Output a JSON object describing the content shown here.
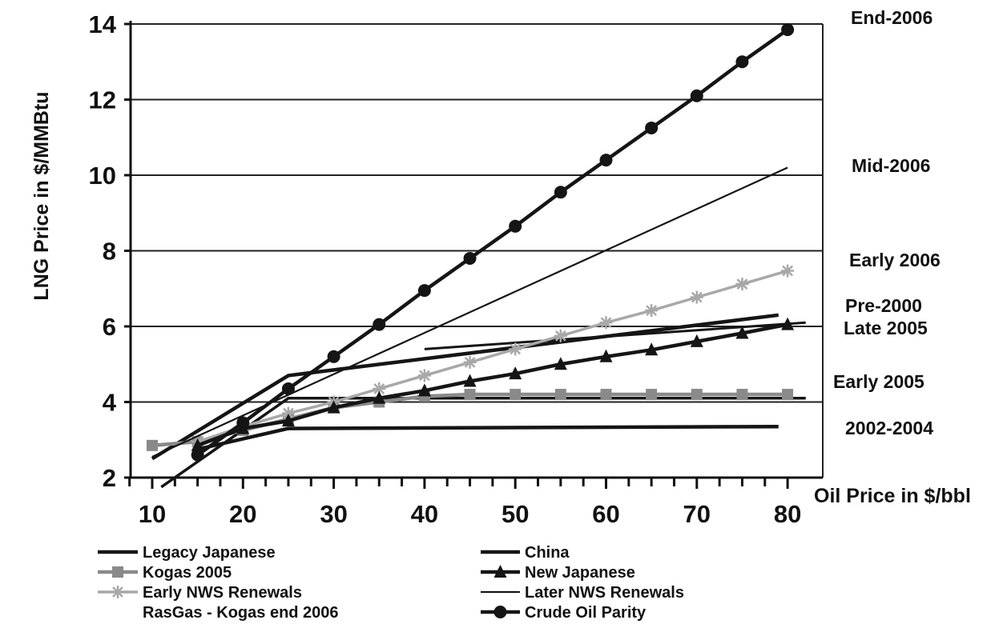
{
  "chart_data": {
    "type": "line",
    "xlabel": "Oil Price in $/bbl",
    "ylabel": "LNG Price in $/MMBtu",
    "xlim": [
      7.5,
      80
    ],
    "ylim": [
      2,
      14
    ],
    "x_ticks": [
      10,
      20,
      30,
      40,
      50,
      60,
      70,
      80
    ],
    "y_ticks": [
      2,
      4,
      6,
      8,
      10,
      12,
      14
    ],
    "grid": "horizontal",
    "legend_position": "bottom",
    "colors": {
      "black": "#151515",
      "gray": "#8a8a8a",
      "light_gray": "#a8a8a8"
    },
    "series": [
      {
        "name": "Legacy Japanese",
        "color": "#151515",
        "width": 4.5,
        "marker": "none",
        "points": [
          [
            10,
            2.5
          ],
          [
            25,
            4.7
          ],
          [
            79,
            6.3
          ]
        ]
      },
      {
        "name": "Kogas 2005",
        "color": "#8a8a8a",
        "width": 4.5,
        "marker": "square",
        "points": [
          [
            10,
            2.85
          ],
          [
            15,
            2.95
          ],
          [
            20,
            3.25
          ],
          [
            25,
            3.55
          ],
          [
            30,
            3.85
          ],
          [
            35,
            4.0
          ],
          [
            40,
            4.15
          ],
          [
            45,
            4.2
          ],
          [
            50,
            4.2
          ],
          [
            55,
            4.2
          ],
          [
            60,
            4.2
          ],
          [
            65,
            4.2
          ],
          [
            70,
            4.2
          ],
          [
            75,
            4.2
          ],
          [
            80,
            4.2
          ]
        ]
      },
      {
        "name": "Early NWS Renewals",
        "color": "#a8a8a8",
        "width": 3.5,
        "marker": "star",
        "points": [
          [
            15,
            2.95
          ],
          [
            20,
            3.35
          ],
          [
            25,
            3.7
          ],
          [
            30,
            4.0
          ],
          [
            35,
            4.35
          ],
          [
            40,
            4.7
          ],
          [
            45,
            5.05
          ],
          [
            50,
            5.4
          ],
          [
            55,
            5.75
          ],
          [
            60,
            6.1
          ],
          [
            65,
            6.42
          ],
          [
            70,
            6.77
          ],
          [
            75,
            7.12
          ],
          [
            80,
            7.47
          ]
        ]
      },
      {
        "name": "RasGas - Kogas end 2006",
        "color": "#151515",
        "width": 4.5,
        "marker": "none",
        "points": []
      },
      {
        "name": "China",
        "color": "#151515",
        "width": 4.5,
        "marker": "none",
        "points": [
          [
            15,
            2.75
          ],
          [
            25,
            3.3
          ],
          [
            79,
            3.35
          ]
        ]
      },
      {
        "name": "New Japanese",
        "color": "#151515",
        "width": 4.5,
        "marker": "triangle",
        "points": [
          [
            15,
            2.85
          ],
          [
            20,
            3.3
          ],
          [
            25,
            3.5
          ],
          [
            30,
            3.85
          ],
          [
            35,
            4.1
          ],
          [
            40,
            4.3
          ],
          [
            45,
            4.55
          ],
          [
            50,
            4.75
          ],
          [
            55,
            5.0
          ],
          [
            60,
            5.2
          ],
          [
            65,
            5.38
          ],
          [
            70,
            5.6
          ],
          [
            75,
            5.82
          ],
          [
            80,
            6.05
          ]
        ]
      },
      {
        "name": "Later NWS Renewals",
        "color": "#151515",
        "width": 2.2,
        "marker": "none",
        "points": [
          [
            10,
            2.55
          ],
          [
            80,
            10.2
          ]
        ]
      },
      {
        "name": "Crude Oil Parity",
        "color": "#151515",
        "width": 4.5,
        "marker": "circle",
        "points": [
          [
            15,
            2.6
          ],
          [
            20,
            3.45
          ],
          [
            25,
            4.35
          ],
          [
            30,
            5.2
          ],
          [
            35,
            6.05
          ],
          [
            40,
            6.95
          ],
          [
            45,
            7.8
          ],
          [
            50,
            8.65
          ],
          [
            55,
            9.55
          ],
          [
            60,
            10.4
          ],
          [
            65,
            11.25
          ],
          [
            70,
            12.1
          ],
          [
            75,
            13.0
          ],
          [
            80,
            13.85
          ]
        ]
      }
    ],
    "other_lines": [
      {
        "color": "#151515",
        "width": 3.5,
        "points": [
          [
            11,
            1.75
          ],
          [
            25,
            4.1
          ],
          [
            35,
            4.1
          ],
          [
            82,
            4.1
          ]
        ]
      },
      {
        "color": "#151515",
        "width": 3,
        "points": [
          [
            40,
            5.4
          ],
          [
            82,
            6.1
          ]
        ]
      }
    ],
    "annotations": [
      "End-2006",
      "Mid-2006",
      "Early 2006",
      "Pre-2000",
      "Late 2005",
      "Early 2005",
      "2002-2004"
    ]
  }
}
